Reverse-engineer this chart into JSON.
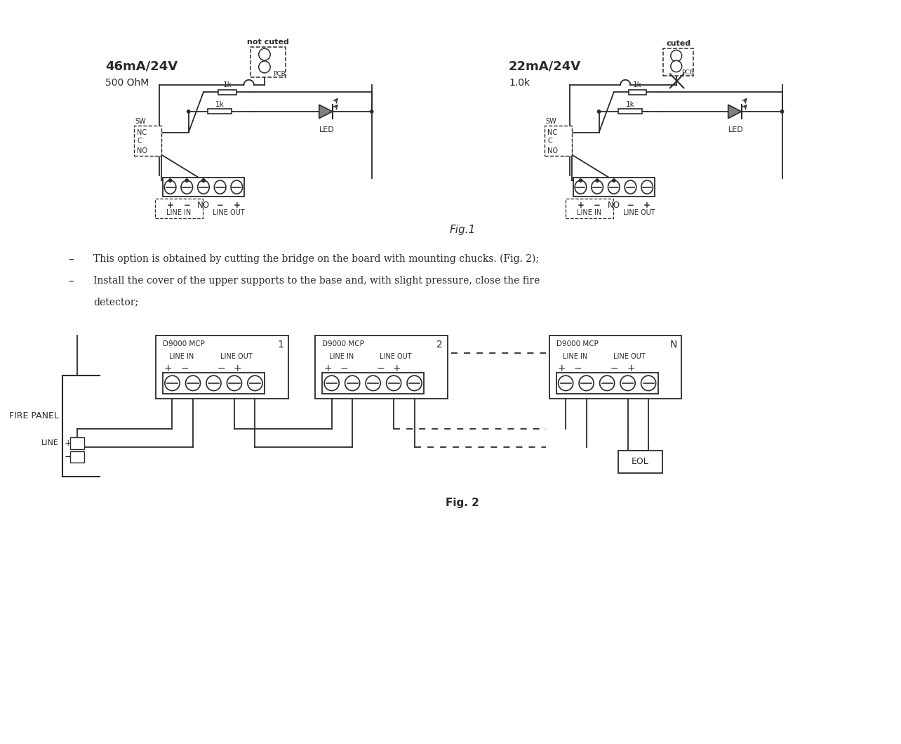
{
  "bg_color": "#ffffff",
  "fig_width": 12.84,
  "fig_height": 10.6,
  "lc": "#2a2a2a",
  "tc": "#2a2a2a",
  "fig1_left_title1": "46mA/24V",
  "fig1_left_title2": "500 OhM",
  "fig1_right_title1": "22mA/24V",
  "fig1_right_title2": "1.0k",
  "fig1_label": "Fig.1",
  "fig2_label": "Fig. 2",
  "bullet1": "This option is obtained by cutting the bridge on the board with mounting chucks. (Fig. 2);",
  "bullet2a": "Install the cover of the upper supports to the base and, with slight pressure, close the fire",
  "bullet2b": "detector;"
}
